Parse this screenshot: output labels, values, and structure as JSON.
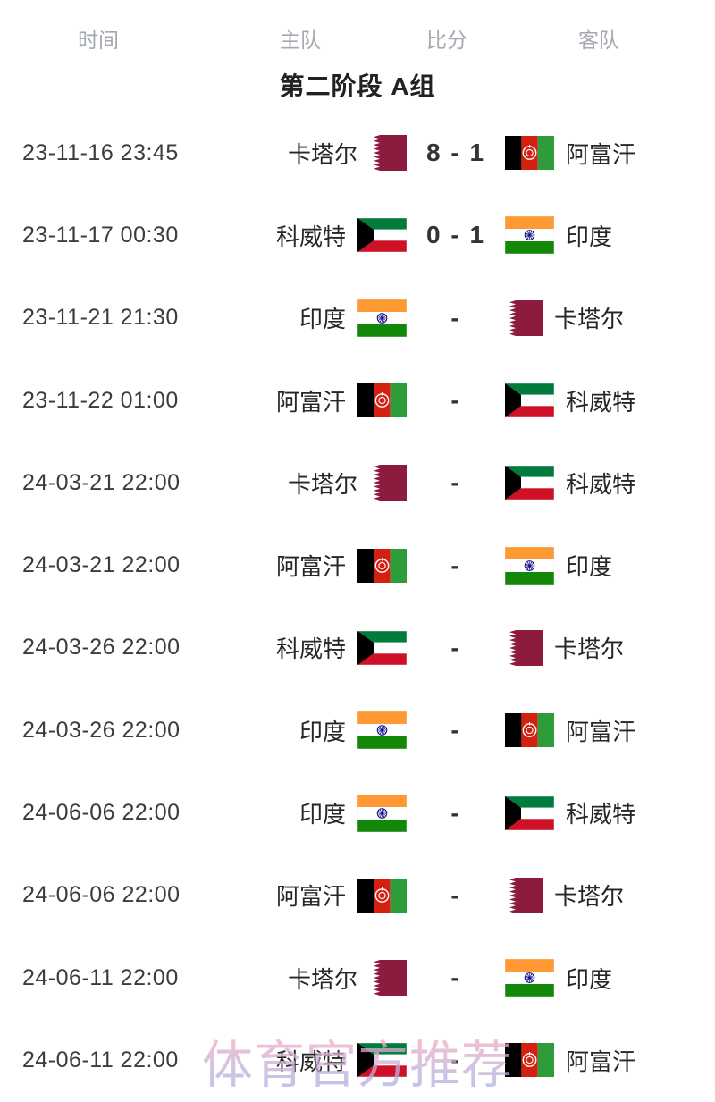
{
  "header": {
    "columns": [
      {
        "key": "time",
        "label": "时间"
      },
      {
        "key": "home",
        "label": "主队"
      },
      {
        "key": "score",
        "label": "比分"
      },
      {
        "key": "away",
        "label": "客队"
      }
    ]
  },
  "group_title": "第二阶段 A组",
  "matches": [
    {
      "time": "23-11-16 23:45",
      "home": "卡塔尔",
      "home_flag": "qatar",
      "score": "8 - 1",
      "away": "阿富汗",
      "away_flag": "afghanistan"
    },
    {
      "time": "23-11-17 00:30",
      "home": "科威特",
      "home_flag": "kuwait",
      "score": "0 - 1",
      "away": "印度",
      "away_flag": "india"
    },
    {
      "time": "23-11-21 21:30",
      "home": "印度",
      "home_flag": "india",
      "score": "-",
      "away": "卡塔尔",
      "away_flag": "qatar"
    },
    {
      "time": "23-11-22 01:00",
      "home": "阿富汗",
      "home_flag": "afghanistan",
      "score": "-",
      "away": "科威特",
      "away_flag": "kuwait"
    },
    {
      "time": "24-03-21 22:00",
      "home": "卡塔尔",
      "home_flag": "qatar",
      "score": "-",
      "away": "科威特",
      "away_flag": "kuwait"
    },
    {
      "time": "24-03-21 22:00",
      "home": "阿富汗",
      "home_flag": "afghanistan",
      "score": "-",
      "away": "印度",
      "away_flag": "india"
    },
    {
      "time": "24-03-26 22:00",
      "home": "科威特",
      "home_flag": "kuwait",
      "score": "-",
      "away": "卡塔尔",
      "away_flag": "qatar"
    },
    {
      "time": "24-03-26 22:00",
      "home": "印度",
      "home_flag": "india",
      "score": "-",
      "away": "阿富汗",
      "away_flag": "afghanistan"
    },
    {
      "time": "24-06-06 22:00",
      "home": "印度",
      "home_flag": "india",
      "score": "-",
      "away": "科威特",
      "away_flag": "kuwait"
    },
    {
      "time": "24-06-06 22:00",
      "home": "阿富汗",
      "home_flag": "afghanistan",
      "score": "-",
      "away": "卡塔尔",
      "away_flag": "qatar"
    },
    {
      "time": "24-06-11 22:00",
      "home": "卡塔尔",
      "home_flag": "qatar",
      "score": "-",
      "away": "印度",
      "away_flag": "india"
    },
    {
      "time": "24-06-11 22:00",
      "home": "科威特",
      "home_flag": "kuwait",
      "score": "-",
      "away": "阿富汗",
      "away_flag": "afghanistan"
    }
  ],
  "watermark": "体育官方推荐",
  "colors": {
    "header_text": "#a4a8af",
    "title_text": "#222222",
    "time_text": "#3c3c3c",
    "team_text": "#262626",
    "score_text": "#333333",
    "watermark_top": "#f0aac6",
    "watermark_bottom": "#a9b2e3"
  },
  "flag_colors": {
    "qatar_maroon": "#8d1b3d",
    "afghan_black": "#000000",
    "afghan_red": "#d32011",
    "afghan_green": "#2e9c3a",
    "kuwait_green": "#007a3d",
    "kuwait_red": "#ce1126",
    "kuwait_black": "#000000",
    "india_saffron": "#ff9933",
    "india_green": "#138808",
    "india_navy": "#000080",
    "white": "#ffffff"
  }
}
